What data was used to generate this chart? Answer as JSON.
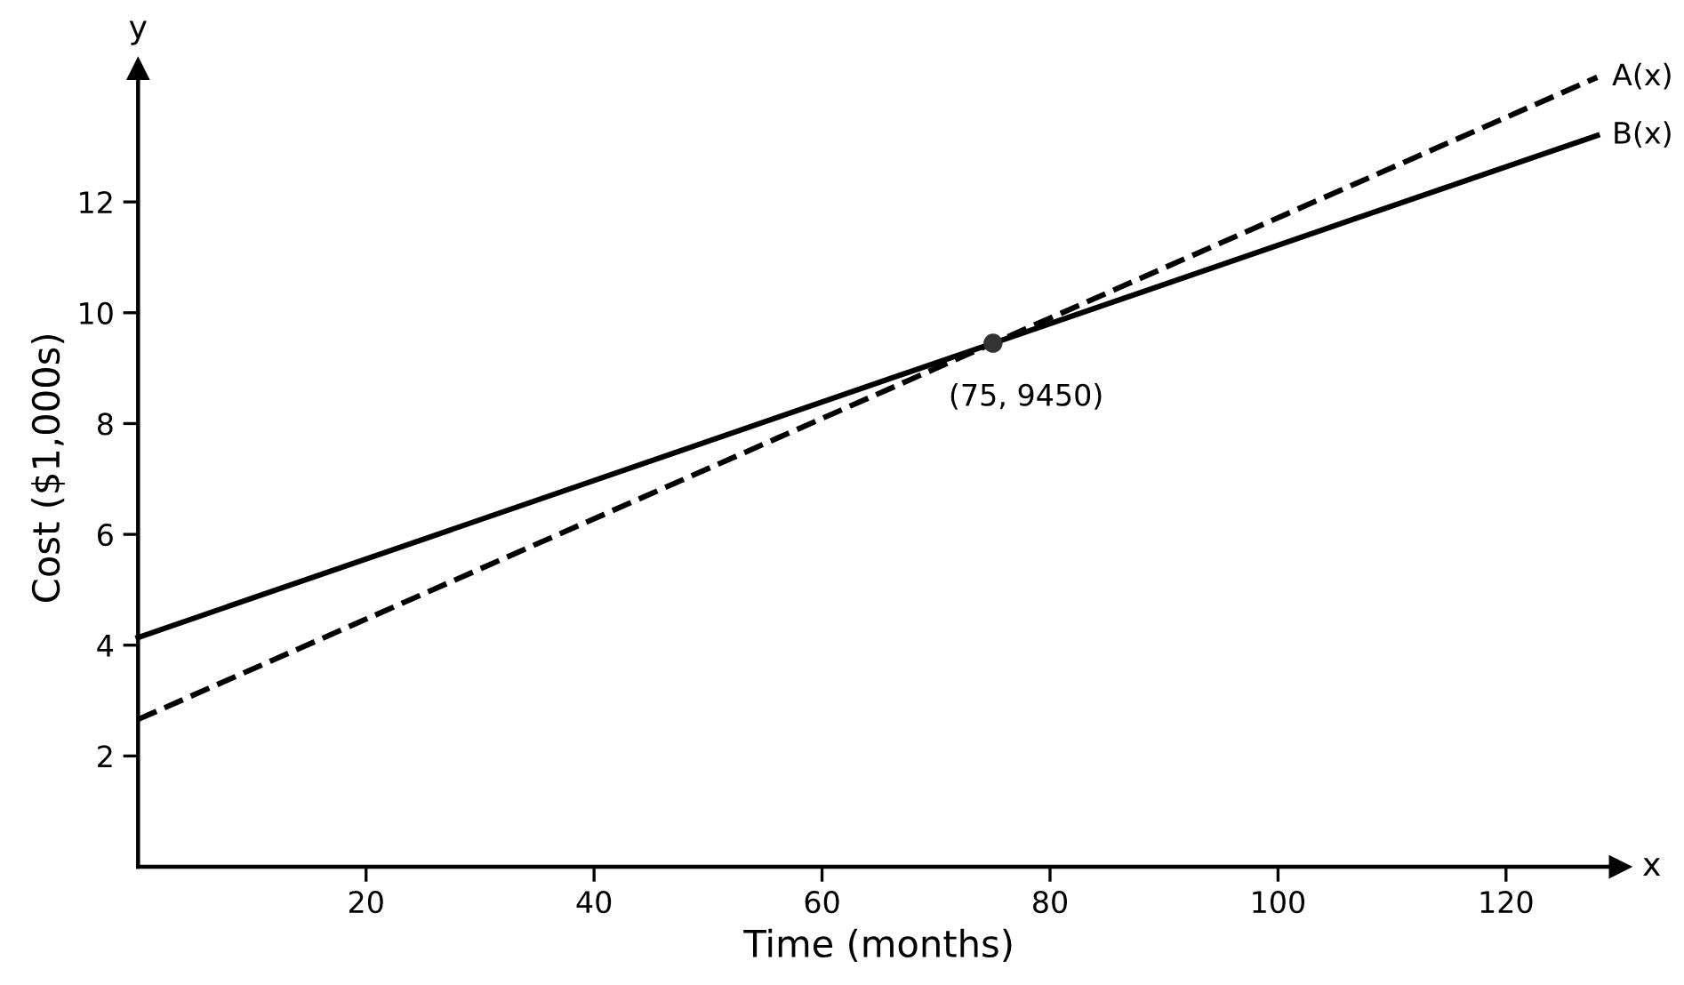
{
  "chart_data": {
    "type": "line",
    "xlabel": "Time (months)",
    "ylabel": "Cost ($1,000s)",
    "xlim": [
      0,
      130
    ],
    "ylim": [
      0,
      14.4
    ],
    "xticks": [
      20,
      40,
      60,
      80,
      100,
      120
    ],
    "yticks": [
      2,
      4,
      6,
      8,
      10,
      12
    ],
    "grid": false,
    "legend": false,
    "series": [
      {
        "name": "A(x)",
        "color": "#000000",
        "line_style": "dashed",
        "x": [
          0,
          75,
          128
        ],
        "values": [
          2.66,
          9.45,
          14.25
        ]
      },
      {
        "name": "B(x)",
        "color": "#000000",
        "line_style": "solid",
        "x": [
          0,
          75,
          128
        ],
        "values": [
          4.14,
          9.45,
          13.2
        ]
      },
      {
        "type": "scatter",
        "color": "#333333",
        "marker": "circle",
        "x": [
          75
        ],
        "values": [
          9.45
        ]
      }
    ],
    "annotations": [
      {
        "text": "(75, 9450)",
        "x": 75,
        "y": 9.45
      },
      "x",
      "y"
    ]
  }
}
